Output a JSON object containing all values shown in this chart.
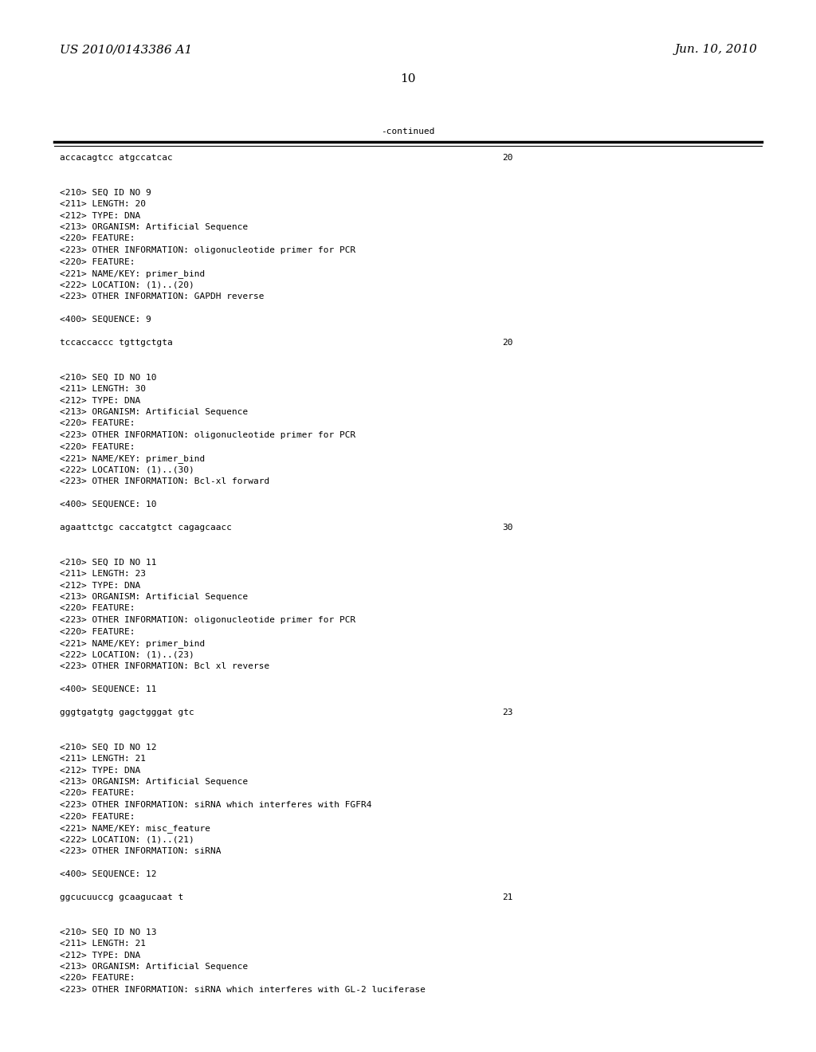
{
  "header_left": "US 2010/0143386 A1",
  "header_right": "Jun. 10, 2010",
  "page_number": "10",
  "continued_label": "-continued",
  "bg_color": "#ffffff",
  "text_color": "#000000",
  "line_color": "#000000",
  "font_size": 8.5,
  "header_font_size": 11,
  "mono_font_size": 8.0,
  "content": [
    {
      "type": "sequence_line",
      "text": "accacagtcc atgccatcac",
      "number": "20"
    },
    {
      "type": "blank"
    },
    {
      "type": "blank"
    },
    {
      "type": "tag_line",
      "text": "<210> SEQ ID NO 9"
    },
    {
      "type": "tag_line",
      "text": "<211> LENGTH: 20"
    },
    {
      "type": "tag_line",
      "text": "<212> TYPE: DNA"
    },
    {
      "type": "tag_line",
      "text": "<213> ORGANISM: Artificial Sequence"
    },
    {
      "type": "tag_line",
      "text": "<220> FEATURE:"
    },
    {
      "type": "tag_line",
      "text": "<223> OTHER INFORMATION: oligonucleotide primer for PCR"
    },
    {
      "type": "tag_line",
      "text": "<220> FEATURE:"
    },
    {
      "type": "tag_line",
      "text": "<221> NAME/KEY: primer_bind"
    },
    {
      "type": "tag_line",
      "text": "<222> LOCATION: (1)..(20)"
    },
    {
      "type": "tag_line",
      "text": "<223> OTHER INFORMATION: GAPDH reverse"
    },
    {
      "type": "blank"
    },
    {
      "type": "tag_line",
      "text": "<400> SEQUENCE: 9"
    },
    {
      "type": "blank"
    },
    {
      "type": "sequence_line",
      "text": "tccaccaccc tgttgctgta",
      "number": "20"
    },
    {
      "type": "blank"
    },
    {
      "type": "blank"
    },
    {
      "type": "tag_line",
      "text": "<210> SEQ ID NO 10"
    },
    {
      "type": "tag_line",
      "text": "<211> LENGTH: 30"
    },
    {
      "type": "tag_line",
      "text": "<212> TYPE: DNA"
    },
    {
      "type": "tag_line",
      "text": "<213> ORGANISM: Artificial Sequence"
    },
    {
      "type": "tag_line",
      "text": "<220> FEATURE:"
    },
    {
      "type": "tag_line",
      "text": "<223> OTHER INFORMATION: oligonucleotide primer for PCR"
    },
    {
      "type": "tag_line",
      "text": "<220> FEATURE:"
    },
    {
      "type": "tag_line",
      "text": "<221> NAME/KEY: primer_bind"
    },
    {
      "type": "tag_line",
      "text": "<222> LOCATION: (1)..(30)"
    },
    {
      "type": "tag_line",
      "text": "<223> OTHER INFORMATION: Bcl-xl forward"
    },
    {
      "type": "blank"
    },
    {
      "type": "tag_line",
      "text": "<400> SEQUENCE: 10"
    },
    {
      "type": "blank"
    },
    {
      "type": "sequence_line",
      "text": "agaattctgc caccatgtct cagagcaacc",
      "number": "30"
    },
    {
      "type": "blank"
    },
    {
      "type": "blank"
    },
    {
      "type": "tag_line",
      "text": "<210> SEQ ID NO 11"
    },
    {
      "type": "tag_line",
      "text": "<211> LENGTH: 23"
    },
    {
      "type": "tag_line",
      "text": "<212> TYPE: DNA"
    },
    {
      "type": "tag_line",
      "text": "<213> ORGANISM: Artificial Sequence"
    },
    {
      "type": "tag_line",
      "text": "<220> FEATURE:"
    },
    {
      "type": "tag_line",
      "text": "<223> OTHER INFORMATION: oligonucleotide primer for PCR"
    },
    {
      "type": "tag_line",
      "text": "<220> FEATURE:"
    },
    {
      "type": "tag_line",
      "text": "<221> NAME/KEY: primer_bind"
    },
    {
      "type": "tag_line",
      "text": "<222> LOCATION: (1)..(23)"
    },
    {
      "type": "tag_line",
      "text": "<223> OTHER INFORMATION: Bcl xl reverse"
    },
    {
      "type": "blank"
    },
    {
      "type": "tag_line",
      "text": "<400> SEQUENCE: 11"
    },
    {
      "type": "blank"
    },
    {
      "type": "sequence_line",
      "text": "gggtgatgtg gagctgggat gtc",
      "number": "23"
    },
    {
      "type": "blank"
    },
    {
      "type": "blank"
    },
    {
      "type": "tag_line",
      "text": "<210> SEQ ID NO 12"
    },
    {
      "type": "tag_line",
      "text": "<211> LENGTH: 21"
    },
    {
      "type": "tag_line",
      "text": "<212> TYPE: DNA"
    },
    {
      "type": "tag_line",
      "text": "<213> ORGANISM: Artificial Sequence"
    },
    {
      "type": "tag_line",
      "text": "<220> FEATURE:"
    },
    {
      "type": "tag_line",
      "text": "<223> OTHER INFORMATION: siRNA which interferes with FGFR4"
    },
    {
      "type": "tag_line",
      "text": "<220> FEATURE:"
    },
    {
      "type": "tag_line",
      "text": "<221> NAME/KEY: misc_feature"
    },
    {
      "type": "tag_line",
      "text": "<222> LOCATION: (1)..(21)"
    },
    {
      "type": "tag_line",
      "text": "<223> OTHER INFORMATION: siRNA"
    },
    {
      "type": "blank"
    },
    {
      "type": "tag_line",
      "text": "<400> SEQUENCE: 12"
    },
    {
      "type": "blank"
    },
    {
      "type": "sequence_line",
      "text": "ggcucuuccg gcaagucaat t",
      "number": "21"
    },
    {
      "type": "blank"
    },
    {
      "type": "blank"
    },
    {
      "type": "tag_line",
      "text": "<210> SEQ ID NO 13"
    },
    {
      "type": "tag_line",
      "text": "<211> LENGTH: 21"
    },
    {
      "type": "tag_line",
      "text": "<212> TYPE: DNA"
    },
    {
      "type": "tag_line",
      "text": "<213> ORGANISM: Artificial Sequence"
    },
    {
      "type": "tag_line",
      "text": "<220> FEATURE:"
    },
    {
      "type": "tag_line",
      "text": "<223> OTHER INFORMATION: siRNA which interferes with GL-2 luciferase"
    }
  ]
}
